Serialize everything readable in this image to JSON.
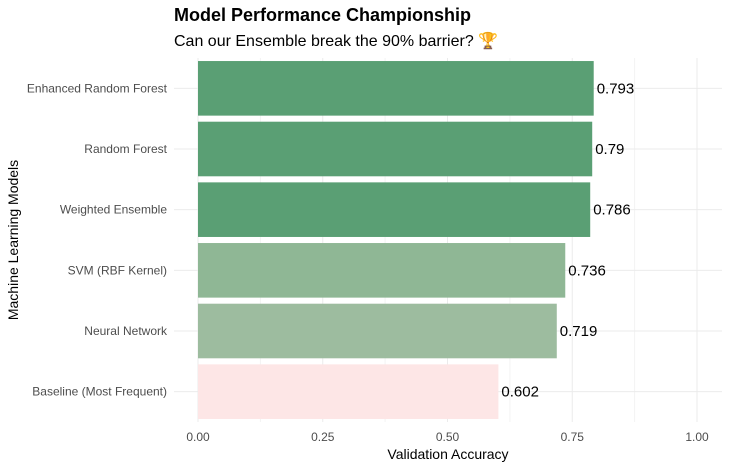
{
  "chart_data": {
    "type": "bar",
    "orientation": "horizontal",
    "title": "Model Performance Championship",
    "subtitle": "Can our Ensemble break the 90% barrier? 🏆",
    "xlabel": "Validation Accuracy",
    "ylabel": "Machine Learning Models",
    "xlim": [
      0,
      1.0
    ],
    "x_ticks": [
      "0.00",
      "0.25",
      "0.50",
      "0.75",
      "1.00"
    ],
    "grid": true,
    "categories": [
      "Enhanced Random Forest",
      "Random Forest",
      "Weighted Ensemble",
      "SVM (RBF Kernel)",
      "Neural Network",
      "Baseline (Most Frequent)"
    ],
    "values": [
      0.793,
      0.79,
      0.786,
      0.736,
      0.719,
      0.602
    ],
    "data_labels": [
      "0.793",
      "0.79",
      "0.786",
      "0.736",
      "0.719",
      "0.602"
    ],
    "bar_colors": [
      "#5a9f74",
      "#5a9f74",
      "#5a9f74",
      "#8fb795",
      "#9dbc9f",
      "#fde6e6"
    ]
  }
}
